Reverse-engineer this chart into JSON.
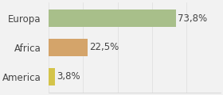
{
  "categories": [
    "Europa",
    "Africa",
    "America"
  ],
  "values": [
    73.8,
    22.5,
    3.8
  ],
  "labels": [
    "73,8%",
    "22,5%",
    "3,8%"
  ],
  "bar_colors": [
    "#a8bf8a",
    "#d4a46a",
    "#d4c44a"
  ],
  "background_color": "#f2f2f2",
  "xlim": [
    0,
    100
  ],
  "bar_height": 0.58,
  "label_fontsize": 8.5,
  "tick_fontsize": 8.5
}
